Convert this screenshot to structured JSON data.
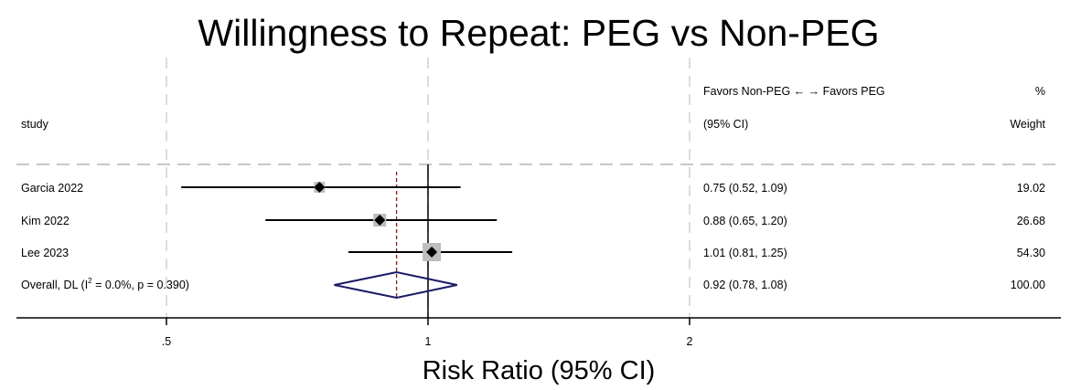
{
  "chart_data": {
    "type": "forest",
    "title": "Willingness to Repeat: PEG vs Non-PEG",
    "xlabel": "Risk Ratio (95% CI)",
    "x_ticks": [
      {
        "value": 0.5,
        "label": ".5"
      },
      {
        "value": 1,
        "label": "1"
      },
      {
        "value": 2,
        "label": "2"
      }
    ],
    "x_scale": "log",
    "header": {
      "study": "study",
      "favors": "Favors Non-PEG ← → Favors PEG",
      "ci": "(95% CI)",
      "weight_line1": "%",
      "weight_line2": "Weight"
    },
    "studies": [
      {
        "name": "Garcia 2022",
        "rr": 0.75,
        "lower": 0.52,
        "upper": 1.09,
        "ci_text": "0.75 (0.52, 1.09)",
        "weight": 19.02,
        "weight_text": "19.02"
      },
      {
        "name": "Kim 2022",
        "rr": 0.88,
        "lower": 0.65,
        "upper": 1.2,
        "ci_text": "0.88 (0.65, 1.20)",
        "weight": 26.68,
        "weight_text": "26.68"
      },
      {
        "name": "Lee 2023",
        "rr": 1.01,
        "lower": 0.81,
        "upper": 1.25,
        "ci_text": "1.01 (0.81, 1.25)",
        "weight": 54.3,
        "weight_text": "54.30"
      }
    ],
    "overall": {
      "label_prefix": "Overall, DL (I",
      "label_sup": "2",
      "label_suffix": " = 0.0%, p = 0.390)",
      "rr": 0.92,
      "lower": 0.78,
      "upper": 1.08,
      "ci_text": "0.92 (0.78, 1.08)",
      "weight_text": "100.00"
    },
    "reference_line": 1,
    "colors": {
      "diamond": "#1a1a66",
      "overall_line": "#8b1a1a",
      "weight_box": "#bdbdbd",
      "gridline": "#dcdcdc"
    }
  }
}
